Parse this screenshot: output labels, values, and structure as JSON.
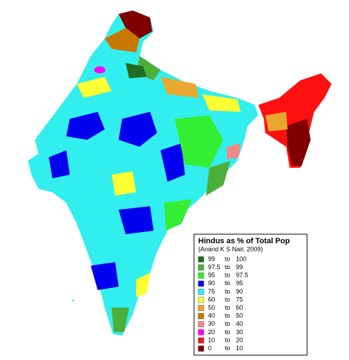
{
  "legend": {
    "title": "Hindus as % of Total Pop",
    "subtitle": "(Anand K S Nair, 2009)",
    "range_word": "to",
    "items": [
      {
        "from": "99",
        "to": "100",
        "color": "#1f6e1f"
      },
      {
        "from": "97.5",
        "to": "99",
        "color": "#4caf3a"
      },
      {
        "from": "95",
        "to": "97.5",
        "color": "#33ee33"
      },
      {
        "from": "90",
        "to": "95",
        "color": "#0000ee"
      },
      {
        "from": "75",
        "to": "90",
        "color": "#33eeee"
      },
      {
        "from": "60",
        "to": "75",
        "color": "#ffff33"
      },
      {
        "from": "50",
        "to": "60",
        "color": "#e8a830"
      },
      {
        "from": "40",
        "to": "50",
        "color": "#c87800"
      },
      {
        "from": "30",
        "to": "40",
        "color": "#f08a8a"
      },
      {
        "from": "20",
        "to": "30",
        "color": "#ff00ff"
      },
      {
        "from": "10",
        "to": "20",
        "color": "#ff1010"
      },
      {
        "from": "0",
        "to": "10",
        "color": "#800000"
      }
    ]
  }
}
